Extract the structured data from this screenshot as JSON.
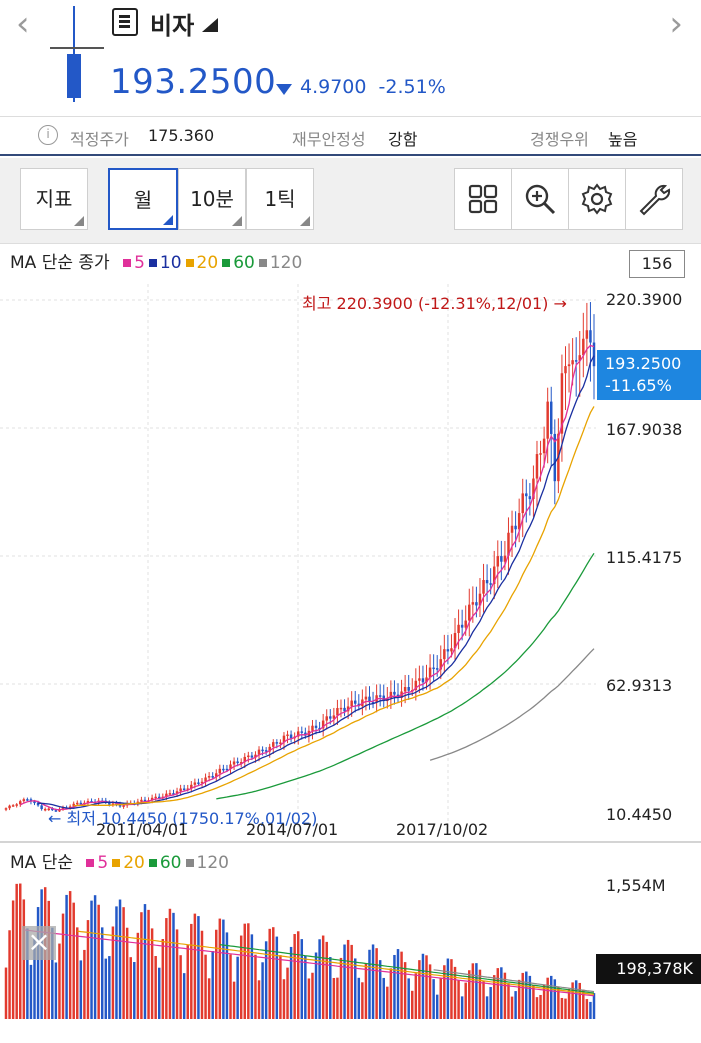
{
  "header": {
    "prev_icon": "chevron-left-icon",
    "next_icon": "chevron-right-icon",
    "title": "비자",
    "price": "193.2500",
    "change_amount": "4.9700",
    "change_pct": "-2.51%",
    "down_color": "#2358c7",
    "up_color": "#e23a2e"
  },
  "info": {
    "items": [
      {
        "label": "적정주가",
        "value": "175.360"
      },
      {
        "label": "재무안정성",
        "value": "강함"
      },
      {
        "label": "경쟁우위",
        "value": "높음"
      }
    ]
  },
  "toolbar": {
    "indicator_label": "지표",
    "periods": [
      "월",
      "10분",
      "1틱"
    ],
    "active_period": "월",
    "icons": [
      "grid-icon",
      "zoom-in-icon",
      "gear-icon",
      "wrench-icon"
    ]
  },
  "chart": {
    "ma_label": "MA 단순 종가",
    "ma_periods": [
      {
        "name": "5",
        "color": "#e0309a"
      },
      {
        "name": "10",
        "color": "#1a2fa0"
      },
      {
        "name": "20",
        "color": "#e8a300"
      },
      {
        "name": "60",
        "color": "#1a9a3a"
      },
      {
        "name": "120",
        "color": "#888888"
      }
    ],
    "visible_count": "156",
    "axis_labels": [
      "220.3900",
      "167.9038",
      "115.4175",
      "62.9313",
      "10.4450"
    ],
    "current_price": "193.2500",
    "current_change": "-11.65%",
    "high_annotation": "최고 220.3900 (-12.31%,12/01) →",
    "low_annotation": "← 최저 10.4450 (1750.17%,01/02)",
    "dates": [
      "2011/04/01",
      "2014/07/01",
      "2017/10/02"
    ],
    "volume_ma_label": "MA 단순",
    "volume_ma_periods": [
      {
        "name": "5",
        "color": "#e0309a"
      },
      {
        "name": "20",
        "color": "#e8a300"
      },
      {
        "name": "60",
        "color": "#1a9a3a"
      },
      {
        "name": "120",
        "color": "#888888"
      }
    ],
    "volume_max": "1,554M",
    "volume_current": "198,378K",
    "close_icon": "close-icon"
  },
  "chart_data": {
    "type": "candlestick",
    "interval": "monthly",
    "y_range": [
      10.445,
      220.39
    ],
    "x_ticks": [
      "2011/04/01",
      "2014/07/01",
      "2017/10/02"
    ],
    "high": {
      "value": 220.39,
      "date": "12/01"
    },
    "low": {
      "value": 10.445,
      "date": "01/02"
    },
    "last_close": 193.25,
    "price_path": [
      [
        0,
        12
      ],
      [
        6,
        16
      ],
      [
        10,
        12
      ],
      [
        14,
        11
      ],
      [
        20,
        14
      ],
      [
        26,
        15
      ],
      [
        32,
        13
      ],
      [
        38,
        15
      ],
      [
        44,
        17
      ],
      [
        50,
        20
      ],
      [
        56,
        24
      ],
      [
        62,
        29
      ],
      [
        68,
        33
      ],
      [
        74,
        37
      ],
      [
        78,
        41
      ],
      [
        84,
        43
      ],
      [
        88,
        46
      ],
      [
        92,
        51
      ],
      [
        96,
        54
      ],
      [
        100,
        56
      ],
      [
        104,
        57
      ],
      [
        108,
        58
      ],
      [
        112,
        60
      ],
      [
        116,
        64
      ],
      [
        120,
        69
      ],
      [
        124,
        77
      ],
      [
        128,
        88
      ],
      [
        132,
        98
      ],
      [
        136,
        107
      ],
      [
        140,
        118
      ],
      [
        144,
        134
      ],
      [
        148,
        146
      ],
      [
        150,
        160
      ],
      [
        152,
        175
      ],
      [
        154,
        150
      ],
      [
        156,
        185
      ],
      [
        158,
        200
      ],
      [
        160,
        190
      ],
      [
        162,
        210
      ],
      [
        165,
        193
      ]
    ],
    "volume_max": 1554,
    "volume_current_k": 198378
  }
}
